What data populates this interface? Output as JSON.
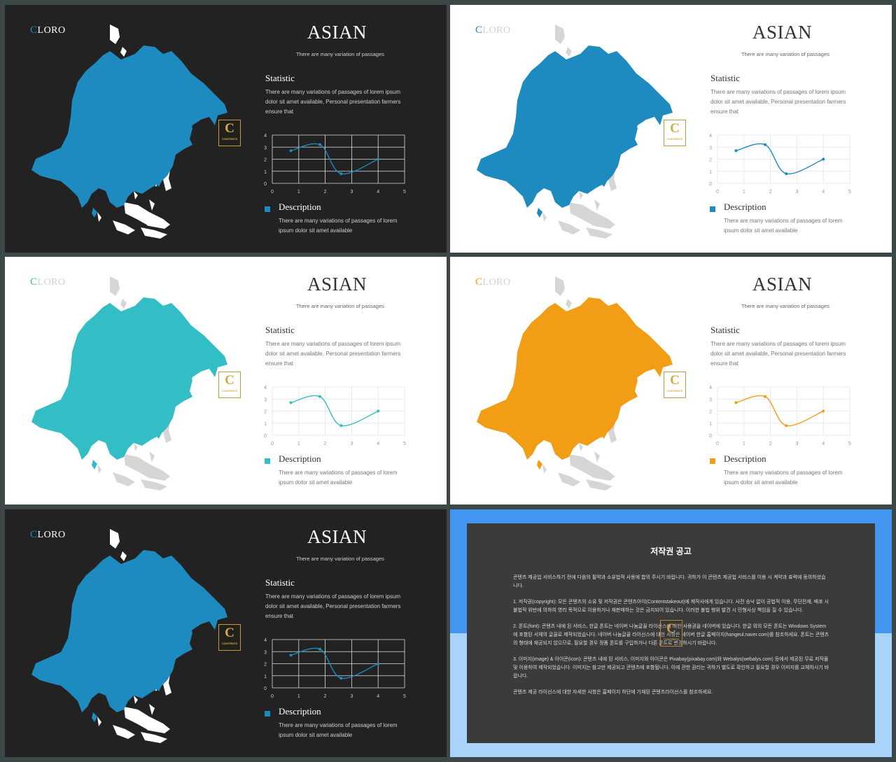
{
  "slides": [
    {
      "theme": "dark",
      "accent": "#1d8ac0",
      "logo_accent": "#1d8ac0",
      "logo_first": "C",
      "logo_rest": "LORO",
      "title": "ASIAN",
      "subtitle": "There are many variation of passages",
      "statistic_heading": "Statistic",
      "statistic_text": "There are many variations of passages of lorem ipsum dolor sit amet available, Personal presentation farmers ensure that",
      "description_heading": "Description",
      "description_text": "There are many variations of passages of lorem ipsum dolor sit amet available",
      "badge_letter": "C",
      "badge_text": "CONTENTS"
    },
    {
      "theme": "light",
      "accent": "#1d8ac0",
      "logo_accent": "#1d8ac0",
      "logo_first": "C",
      "logo_rest": "LORO",
      "title": "ASIAN",
      "subtitle": "There are many variation of passages",
      "statistic_heading": "Statistic",
      "statistic_text": "There are many variations of passages of lorem ipsum dolor sit amet available, Personal presentation farmers ensure that",
      "description_heading": "Description",
      "description_text": "There are many variations of passages of lorem ipsum dolor sit amet available",
      "badge_letter": "C",
      "badge_text": "CONTENTS"
    },
    {
      "theme": "light",
      "accent": "#33bdc4",
      "logo_accent": "#33bdc4",
      "logo_first": "C",
      "logo_rest": "LORO",
      "title": "ASIAN",
      "subtitle": "There are many variation of passages",
      "statistic_heading": "Statistic",
      "statistic_text": "There are many variations of passages of lorem ipsum dolor sit amet available, Personal presentation farmers ensure that",
      "description_heading": "Description",
      "description_text": "There are many variations of passages of lorem ipsum dolor sit amet available",
      "badge_letter": "C",
      "badge_text": "CONTENTS"
    },
    {
      "theme": "light",
      "accent": "#f29d16",
      "logo_accent": "#f29d16",
      "logo_first": "C",
      "logo_rest": "LORO",
      "title": "ASIAN",
      "subtitle": "There are many variation of passages",
      "statistic_heading": "Statistic",
      "statistic_text": "There are many variations of passages of lorem ipsum dolor sit amet available, Personal presentation farmers ensure that",
      "description_heading": "Description",
      "description_text": "There are many variations of passages of lorem ipsum dolor sit amet available",
      "badge_letter": "C",
      "badge_text": "CONTENTS"
    },
    {
      "theme": "dark",
      "accent": "#1d8ac0",
      "logo_accent": "#1d8ac0",
      "logo_first": "C",
      "logo_rest": "LORO",
      "title": "ASIAN",
      "subtitle": "There are many variation of passages",
      "statistic_heading": "Statistic",
      "statistic_text": "There are many variations of passages of lorem ipsum dolor sit amet available, Personal presentation farmers ensure that",
      "description_heading": "Description",
      "description_text": "There are many variations of passages of lorem ipsum dolor sit amet available",
      "badge_letter": "C",
      "badge_text": "CONTENTS"
    }
  ],
  "chart_data": {
    "type": "line",
    "x": [
      0.7,
      1.8,
      2.6,
      4.0
    ],
    "values": [
      2.7,
      3.2,
      0.8,
      2.0
    ],
    "xlim": [
      0,
      5
    ],
    "ylim": [
      0,
      4
    ],
    "xticks": [
      "0",
      "1",
      "2",
      "3",
      "4",
      "5"
    ],
    "yticks": [
      "0",
      "1",
      "2",
      "3",
      "4"
    ],
    "grid": true,
    "smooth": true
  },
  "copyright": {
    "title": "저작권 공고",
    "badge_letter": "C",
    "badge_text": "CONTENTS",
    "paragraphs": [
      "콘텐츠 제공업 서비스하기 전에 다음의 필약과 소유법적 사용에 합의 주시기 바랍니다. 귀하가 이 콘텐츠 제공업 서비스를 이용 시 계약과 효력에 동의하셨습니다.",
      "1. 저작권(copyright): 모든 콘텐츠의 소유 및 저작권은 콘텐츠아이(Contentstakeout)에 제작사에게 있습니다. 사전 승낙 없이 공법적 이용, 무단전재, 배포 시 불법적 위반에 의하여 영리 목적으로 이용하거나 재판매하는 것은 금지되어 있습니다. 이러한 불법 행위 발견 시 민형사상 책임을 질 수 있습니다.",
      "2. 폰트(font): 콘텐츠 내에 된 서비스, 한글 폰트는 네이버 나눔글꼴 라이선스에 대한 사용권을 네이버에 있습니다. 한글 외의 모든 폰트는 Windows System에 포함된 서체의 글꼴로 제작되었습니다. 네이버 나눔글꼴 라이선스에 대한 사항은 네이버 한글 홈페이지(hangeul.naver.com)를 참조하세요. 폰트는 콘텐츠의 형태에 재공되지 않으므로, 필요할 경우 정품 폰트를 구입하거나 다른 폰트로 변경하시기 바랍니다.",
      "3. 이미지(image) & 아이콘(icon): 콘텐츠 내에 된 서비스, 이미지와 아이콘은 Pixabay(pixabay.com)와 Webalys(webalys.com) 등에서 제공된 무료 저작물 및 이용하여 제작되었습니다. 이미지는 참고만 제공되고 콘텐츠에 포함됩니다. 이에 관한 권리는 귀하가 별도로 확인하고 필요할 경우 이미지를 교체하시기 바랍니다.",
      "콘텐츠 제공 라이선스에 대한 자세한 사항은 홈페이지 하단에 기재된 콘텐츠라이선스를 참조하세요."
    ]
  }
}
